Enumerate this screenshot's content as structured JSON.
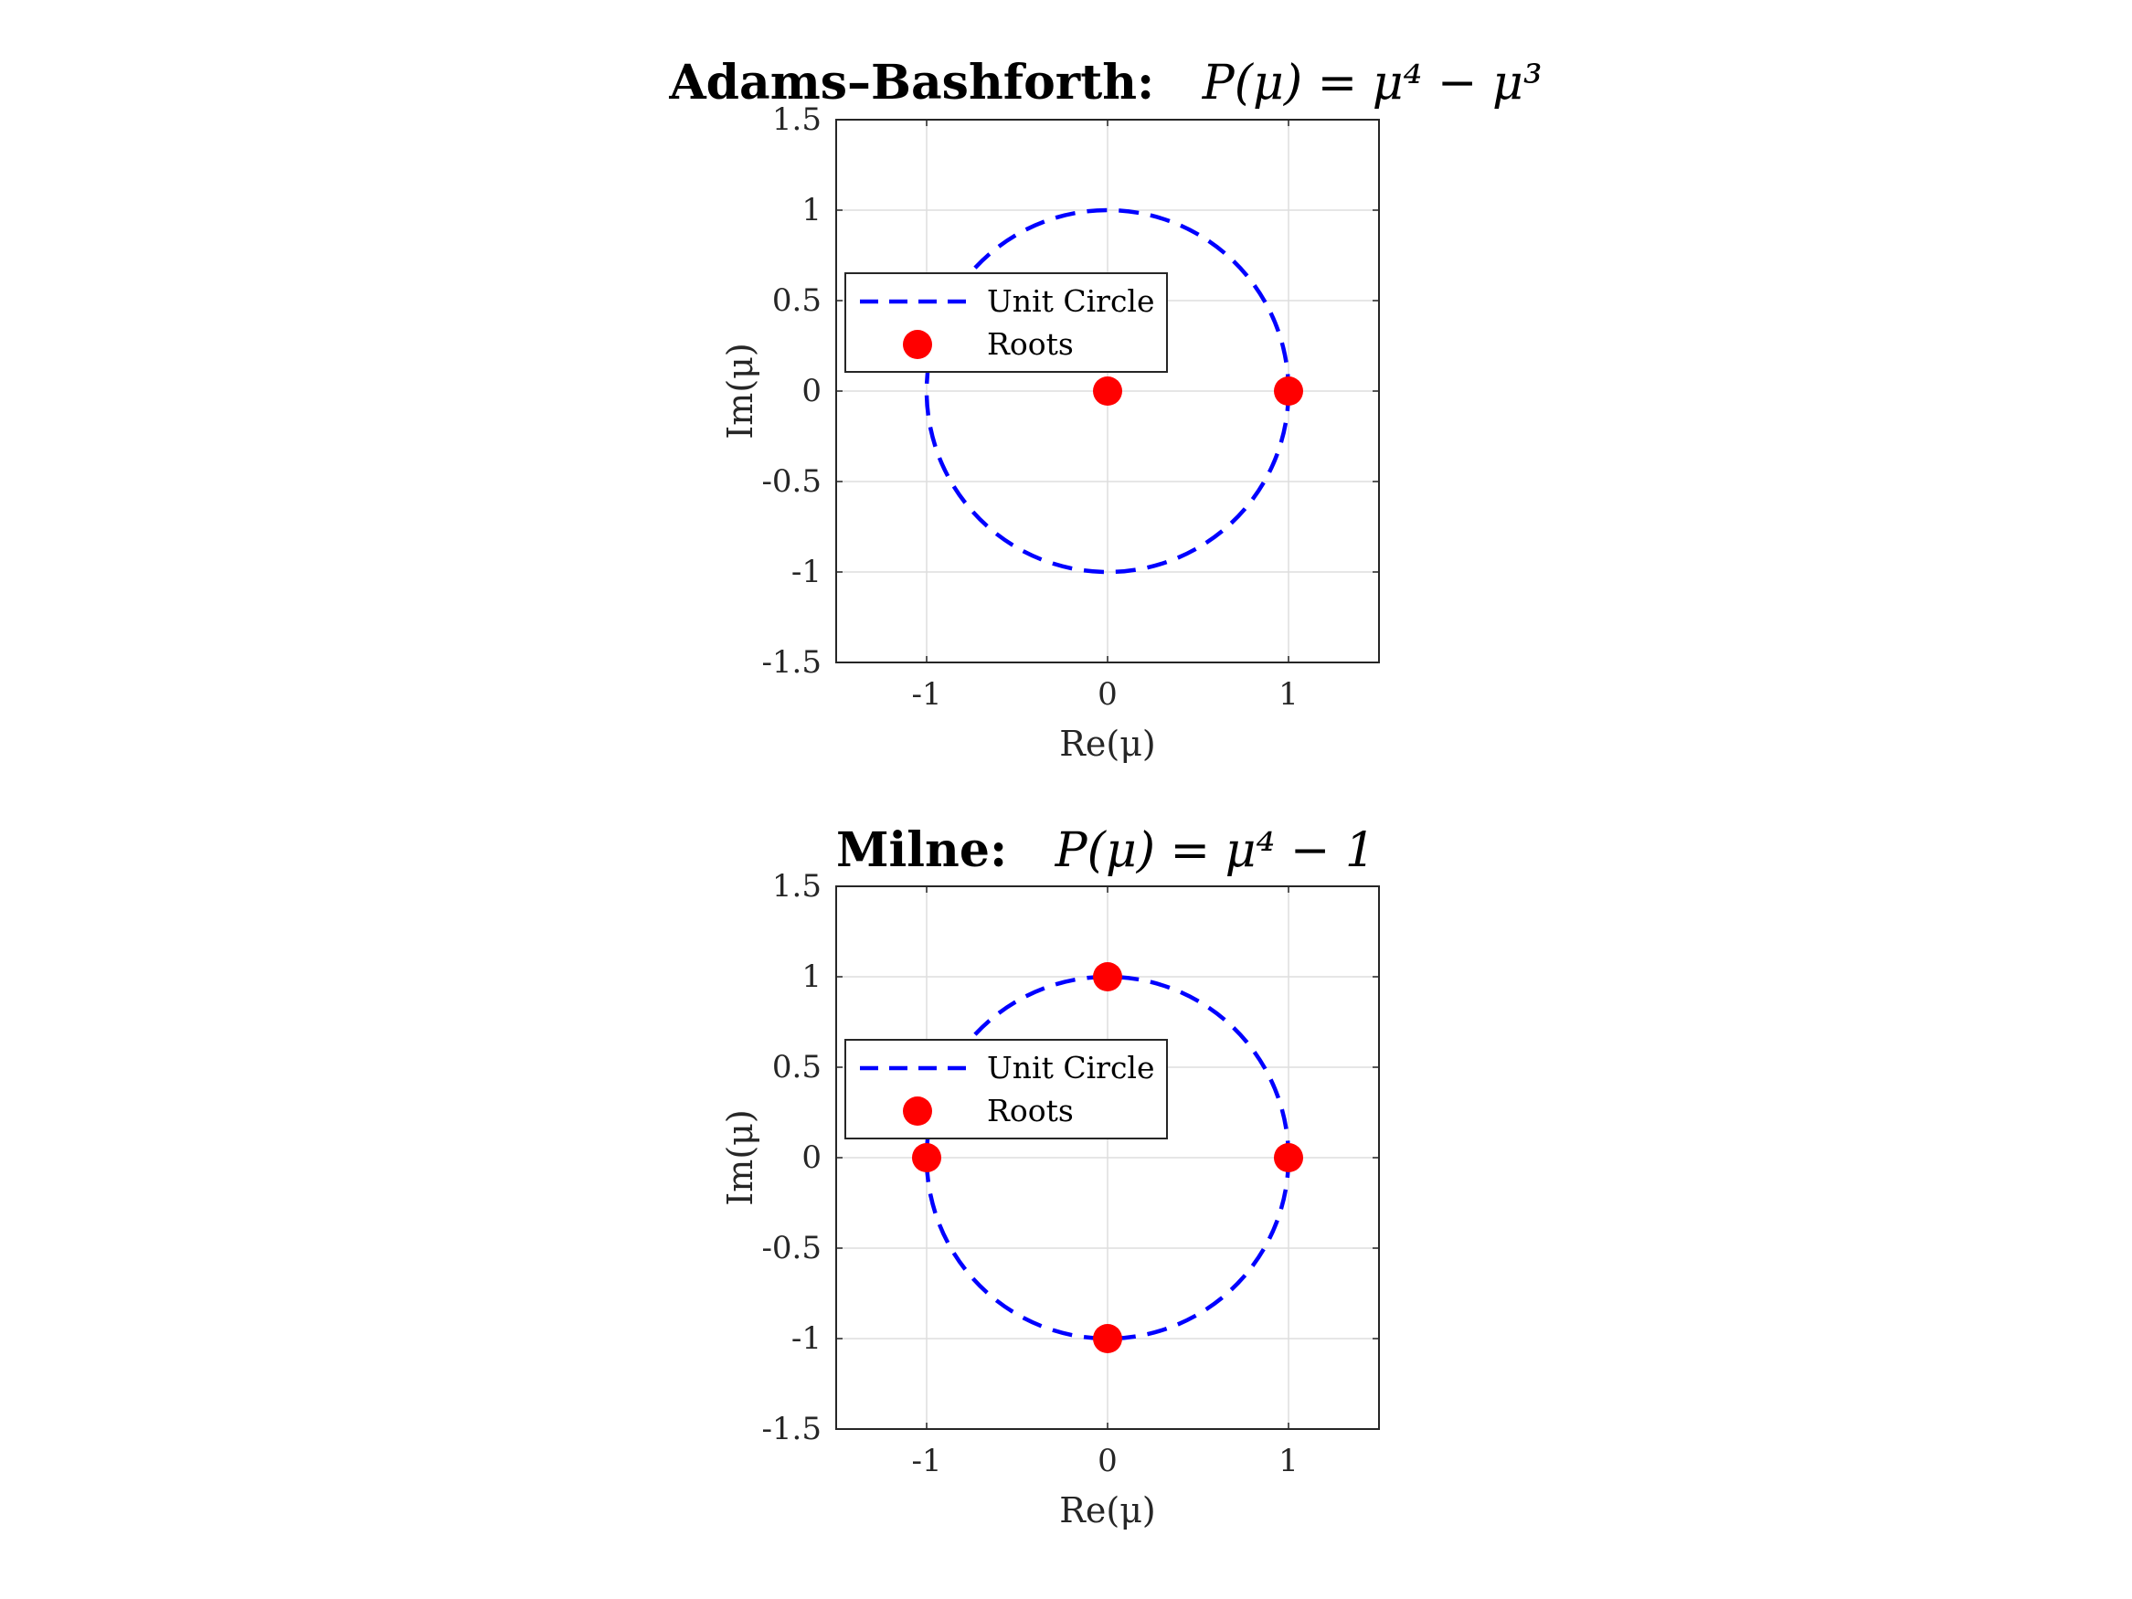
{
  "chart_data": [
    {
      "type": "scatter",
      "title": "Adams–Bashforth:",
      "title_equation": "P(μ) = μ⁴ − μ³",
      "xlabel": "Re(μ)",
      "ylabel": "Im(μ)",
      "xlim": [
        -1.5,
        1.5
      ],
      "ylim": [
        -1.5,
        1.5
      ],
      "xticks": [
        "-1",
        "0",
        "1"
      ],
      "yticks": [
        "1.5",
        "1",
        "0.5",
        "0",
        "-0.5",
        "-1",
        "-1.5"
      ],
      "grid": true,
      "legend_position": "upper-left",
      "series": [
        {
          "name": "Unit Circle",
          "kind": "dashed-line",
          "color": "#0000ff",
          "shape": "circle",
          "radius": 1
        },
        {
          "name": "Roots",
          "kind": "markers",
          "color": "#ff0000",
          "points": [
            [
              0,
              0
            ],
            [
              1,
              0
            ]
          ]
        }
      ]
    },
    {
      "type": "scatter",
      "title": "Milne:",
      "title_equation": "P(μ) = μ⁴ − 1",
      "xlabel": "Re(μ)",
      "ylabel": "Im(μ)",
      "xlim": [
        -1.5,
        1.5
      ],
      "ylim": [
        -1.5,
        1.5
      ],
      "xticks": [
        "-1",
        "0",
        "1"
      ],
      "yticks": [
        "1.5",
        "1",
        "0.5",
        "0",
        "-0.5",
        "-1",
        "-1.5"
      ],
      "grid": true,
      "legend_position": "upper-left",
      "series": [
        {
          "name": "Unit Circle",
          "kind": "dashed-line",
          "color": "#0000ff",
          "shape": "circle",
          "radius": 1
        },
        {
          "name": "Roots",
          "kind": "markers",
          "color": "#ff0000",
          "points": [
            [
              1,
              0
            ],
            [
              -1,
              0
            ],
            [
              0,
              1
            ],
            [
              0,
              -1
            ]
          ]
        }
      ]
    }
  ]
}
